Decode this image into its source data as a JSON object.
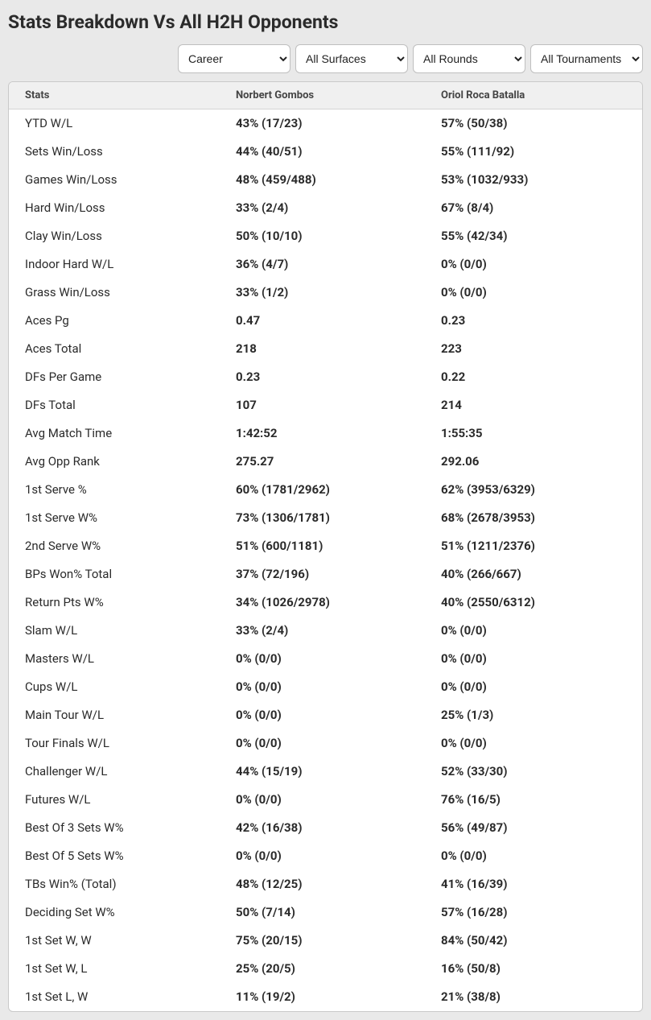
{
  "title": "Stats Breakdown Vs All H2H Opponents",
  "filters": {
    "career": {
      "selected": "Career",
      "options": [
        "Career"
      ]
    },
    "surfaces": {
      "selected": "All Surfaces",
      "options": [
        "All Surfaces"
      ]
    },
    "rounds": {
      "selected": "All Rounds",
      "options": [
        "All Rounds"
      ]
    },
    "tournaments": {
      "selected": "All Tournaments",
      "options": [
        "All Tournaments"
      ]
    }
  },
  "columns": {
    "stats": "Stats",
    "p1": "Norbert Gombos",
    "p2": "Oriol Roca Batalla"
  },
  "rows": [
    {
      "label": "YTD W/L",
      "p1": "43% (17/23)",
      "p2": "57% (50/38)"
    },
    {
      "label": "Sets Win/Loss",
      "p1": "44% (40/51)",
      "p2": "55% (111/92)"
    },
    {
      "label": "Games Win/Loss",
      "p1": "48% (459/488)",
      "p2": "53% (1032/933)"
    },
    {
      "label": "Hard Win/Loss",
      "p1": "33% (2/4)",
      "p2": "67% (8/4)"
    },
    {
      "label": "Clay Win/Loss",
      "p1": "50% (10/10)",
      "p2": "55% (42/34)"
    },
    {
      "label": "Indoor Hard W/L",
      "p1": "36% (4/7)",
      "p2": "0% (0/0)"
    },
    {
      "label": "Grass Win/Loss",
      "p1": "33% (1/2)",
      "p2": "0% (0/0)"
    },
    {
      "label": "Aces Pg",
      "p1": "0.47",
      "p2": "0.23"
    },
    {
      "label": "Aces Total",
      "p1": "218",
      "p2": "223"
    },
    {
      "label": "DFs Per Game",
      "p1": "0.23",
      "p2": "0.22"
    },
    {
      "label": "DFs Total",
      "p1": "107",
      "p2": "214"
    },
    {
      "label": "Avg Match Time",
      "p1": "1:42:52",
      "p2": "1:55:35"
    },
    {
      "label": "Avg Opp Rank",
      "p1": "275.27",
      "p2": "292.06"
    },
    {
      "label": "1st Serve %",
      "p1": "60% (1781/2962)",
      "p2": "62% (3953/6329)"
    },
    {
      "label": "1st Serve W%",
      "p1": "73% (1306/1781)",
      "p2": "68% (2678/3953)"
    },
    {
      "label": "2nd Serve W%",
      "p1": "51% (600/1181)",
      "p2": "51% (1211/2376)"
    },
    {
      "label": "BPs Won% Total",
      "p1": "37% (72/196)",
      "p2": "40% (266/667)"
    },
    {
      "label": "Return Pts W%",
      "p1": "34% (1026/2978)",
      "p2": "40% (2550/6312)"
    },
    {
      "label": "Slam W/L",
      "p1": "33% (2/4)",
      "p2": "0% (0/0)"
    },
    {
      "label": "Masters W/L",
      "p1": "0% (0/0)",
      "p2": "0% (0/0)"
    },
    {
      "label": "Cups W/L",
      "p1": "0% (0/0)",
      "p2": "0% (0/0)"
    },
    {
      "label": "Main Tour W/L",
      "p1": "0% (0/0)",
      "p2": "25% (1/3)"
    },
    {
      "label": "Tour Finals W/L",
      "p1": "0% (0/0)",
      "p2": "0% (0/0)"
    },
    {
      "label": "Challenger W/L",
      "p1": "44% (15/19)",
      "p2": "52% (33/30)"
    },
    {
      "label": "Futures W/L",
      "p1": "0% (0/0)",
      "p2": "76% (16/5)"
    },
    {
      "label": "Best Of 3 Sets W%",
      "p1": "42% (16/38)",
      "p2": "56% (49/87)"
    },
    {
      "label": "Best Of 5 Sets W%",
      "p1": "0% (0/0)",
      "p2": "0% (0/0)"
    },
    {
      "label": "TBs Win% (Total)",
      "p1": "48% (12/25)",
      "p2": "41% (16/39)"
    },
    {
      "label": "Deciding Set W%",
      "p1": "50% (7/14)",
      "p2": "57% (16/28)"
    },
    {
      "label": "1st Set W, W",
      "p1": "75% (20/15)",
      "p2": "84% (50/42)"
    },
    {
      "label": "1st Set W, L",
      "p1": "25% (20/5)",
      "p2": "16% (50/8)"
    },
    {
      "label": "1st Set L, W",
      "p1": "11% (19/2)",
      "p2": "21% (38/8)"
    }
  ]
}
